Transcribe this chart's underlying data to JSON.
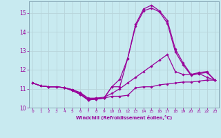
{
  "background_color": "#c8eaf0",
  "grid_color": "#b8d4da",
  "line_color": "#990099",
  "xlim": [
    -0.5,
    23.5
  ],
  "ylim": [
    10,
    15.6
  ],
  "yticks": [
    10,
    11,
    12,
    13,
    14,
    15
  ],
  "xticks": [
    0,
    1,
    2,
    3,
    4,
    5,
    6,
    7,
    8,
    9,
    10,
    11,
    12,
    13,
    14,
    15,
    16,
    17,
    18,
    19,
    20,
    21,
    22,
    23
  ],
  "xlabel": "Windchill (Refroidissement éolien,°C)",
  "series": [
    [
      11.3,
      11.15,
      11.1,
      11.1,
      11.05,
      10.95,
      10.75,
      10.45,
      10.5,
      10.5,
      10.6,
      10.6,
      10.65,
      11.05,
      11.1,
      11.1,
      11.2,
      11.25,
      11.3,
      11.35,
      11.35,
      11.4,
      11.45,
      11.45
    ],
    [
      11.3,
      11.15,
      11.1,
      11.1,
      11.05,
      10.95,
      10.8,
      10.5,
      10.5,
      10.55,
      10.75,
      11.0,
      11.3,
      11.6,
      11.9,
      12.2,
      12.5,
      12.8,
      11.9,
      11.75,
      11.75,
      11.8,
      11.6,
      11.45
    ],
    [
      11.3,
      11.15,
      11.1,
      11.1,
      11.05,
      10.9,
      10.7,
      10.4,
      10.45,
      10.5,
      11.1,
      11.5,
      12.6,
      14.3,
      15.1,
      15.25,
      15.05,
      14.45,
      12.95,
      12.25,
      11.7,
      11.8,
      11.85,
      11.45
    ],
    [
      11.3,
      11.15,
      11.1,
      11.1,
      11.05,
      10.9,
      10.7,
      10.4,
      10.45,
      10.5,
      11.1,
      11.1,
      12.6,
      14.4,
      15.2,
      15.4,
      15.1,
      14.6,
      13.1,
      12.35,
      11.75,
      11.85,
      11.9,
      11.45
    ]
  ]
}
